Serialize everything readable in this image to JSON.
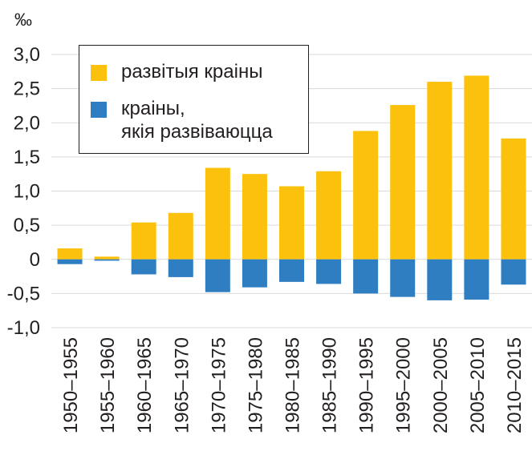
{
  "chart_data": {
    "type": "bar",
    "unit": "‰",
    "categories": [
      "1950–1955",
      "1955–1960",
      "1960–1965",
      "1965–1970",
      "1970–1975",
      "1975–1980",
      "1980–1985",
      "1985–1990",
      "1990–1995",
      "1995–2000",
      "2000–2005",
      "2005–2010",
      "2010–2015"
    ],
    "series": [
      {
        "name": "развітыя краіны",
        "color": "#fbc10d",
        "values": [
          0.16,
          0.04,
          0.54,
          0.68,
          1.34,
          1.25,
          1.07,
          1.29,
          1.88,
          2.26,
          2.6,
          2.69,
          1.77
        ]
      },
      {
        "name": "краіны,\nякія развіваюцца",
        "color": "#2f7ec1",
        "values": [
          -0.07,
          -0.02,
          -0.22,
          -0.26,
          -0.48,
          -0.41,
          -0.33,
          -0.36,
          -0.5,
          -0.55,
          -0.6,
          -0.59,
          -0.37
        ]
      }
    ],
    "ylim": [
      -1.0,
      3.0
    ],
    "yticks": [
      "3,0",
      "2,5",
      "2,0",
      "1,5",
      "1,0",
      "0,5",
      "0",
      "-0,5",
      "-1,0"
    ],
    "ytick_values": [
      3.0,
      2.5,
      2.0,
      1.5,
      1.0,
      0.5,
      0,
      -0.5,
      -1.0
    ],
    "grid": true,
    "stacked": true,
    "legend_position": "top-left"
  }
}
